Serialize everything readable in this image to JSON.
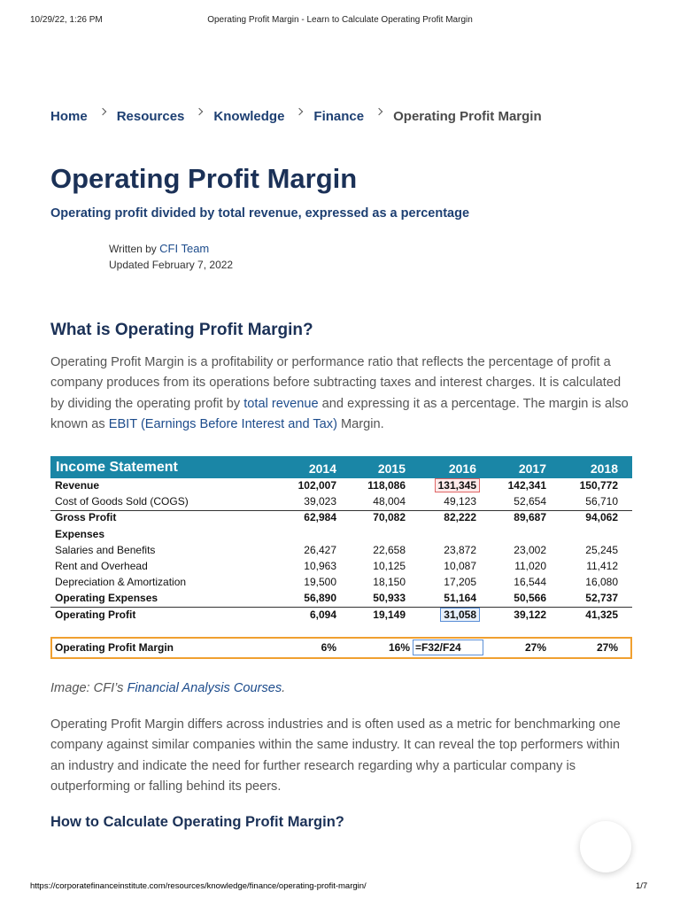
{
  "print_header": {
    "datetime": "10/29/22, 1:26 PM",
    "title": "Operating Profit Margin - Learn to Calculate Operating Profit Margin"
  },
  "breadcrumb": [
    "Home",
    "Resources",
    "Knowledge",
    "Finance",
    "Operating Profit Margin"
  ],
  "article": {
    "title": "Operating Profit Margin",
    "subtitle": "Operating profit divided by total revenue, expressed as a percentage",
    "byline": {
      "written_by": "Written by",
      "author": "CFI Team",
      "updated": "Updated February 7, 2022"
    },
    "heading_1": "What is Operating Profit Margin?",
    "paragraph_1": [
      {
        "text": "Operating Profit Margin is a profitability or performance ratio that reflects the percentage of profit a company produces from its operations before subtracting taxes and interest charges. It is calculated by dividing the operating profit by "
      },
      {
        "link": "total revenue"
      },
      {
        "text": " and expressing it as a percentage. The margin is also known as "
      },
      {
        "link": "EBIT (Earnings Before Interest and Tax)"
      },
      {
        "text": " Margin."
      }
    ],
    "table": {
      "title": "Income Statement",
      "years": [
        "2014",
        "2015",
        "2016",
        "2017",
        "2018"
      ],
      "rows": [
        {
          "label": "Revenue",
          "bold": true,
          "values": [
            "102,007",
            "118,086",
            "131,345",
            "142,341",
            "150,772"
          ]
        },
        {
          "label": "Cost of Goods Sold (COGS)",
          "values": [
            "39,023",
            "48,004",
            "49,123",
            "52,654",
            "56,710"
          ]
        },
        {
          "label": "Gross Profit",
          "bold": true,
          "values": [
            "62,984",
            "70,082",
            "82,222",
            "89,687",
            "94,062"
          ]
        },
        {
          "label": "Expenses",
          "bold": true
        },
        {
          "label": "Salaries and Benefits",
          "values": [
            "26,427",
            "22,658",
            "23,872",
            "23,002",
            "25,245"
          ]
        },
        {
          "label": "Rent and Overhead",
          "values": [
            "10,963",
            "10,125",
            "10,087",
            "11,020",
            "11,412"
          ]
        },
        {
          "label": "Depreciation & Amortization",
          "values": [
            "19,500",
            "18,150",
            "17,205",
            "16,544",
            "16,080"
          ]
        },
        {
          "label": "Operating Expenses",
          "bold": true,
          "values": [
            "56,890",
            "50,933",
            "51,164",
            "50,566",
            "52,737"
          ]
        },
        {
          "label": "Operating Profit",
          "bold": true,
          "values": [
            "6,094",
            "19,149",
            "31,058",
            "39,122",
            "41,325"
          ]
        }
      ],
      "margin_row": {
        "label": "Operating Profit Margin",
        "values": [
          "6%",
          "16%",
          "=F32/F24",
          "27%",
          "27%"
        ]
      }
    },
    "caption": [
      {
        "text": "Image: CFI’s "
      },
      {
        "link": "Financial Analysis Courses"
      },
      {
        "text": "."
      }
    ],
    "paragraph_2": "Operating Profit Margin differs across industries and is often used as a metric for benchmarking one company against similar companies within the same industry. It can reveal the top performers within an industry and indicate the need for further research regarding why a particular company is outperforming or falling behind its peers.",
    "heading_2": "How to Calculate Operating Profit Margin?"
  },
  "print_footer": {
    "url": "https://corporatefinanceinstitute.com/resources/knowledge/finance/operating-profit-margin/",
    "page": "1/7"
  }
}
